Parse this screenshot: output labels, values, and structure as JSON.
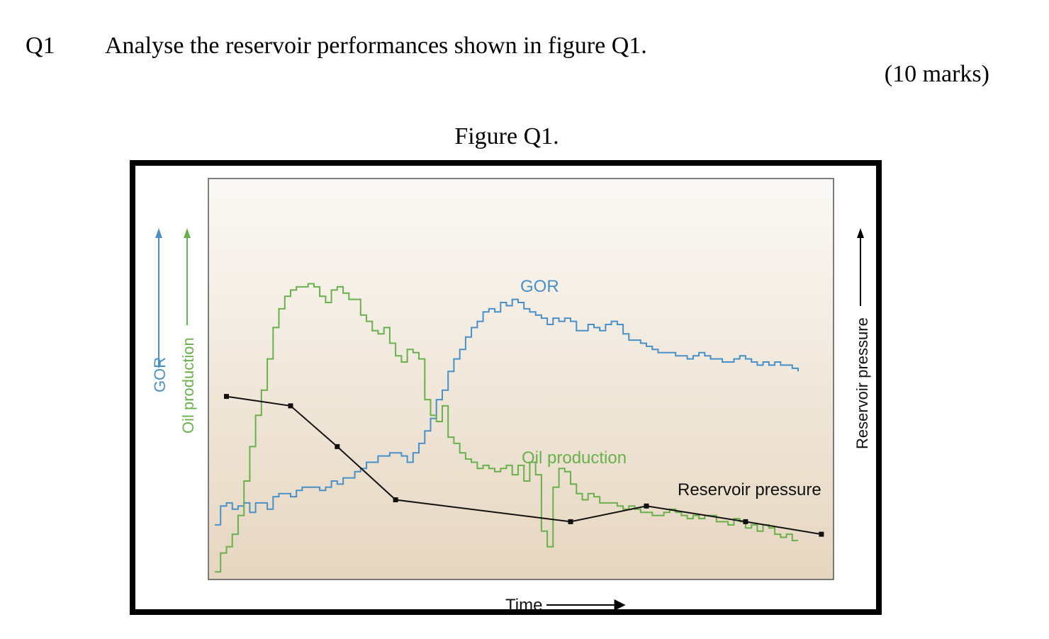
{
  "question": {
    "number": "Q1",
    "text": "Analyse the reservoir performances shown in figure Q1.",
    "marks": "(10 marks)"
  },
  "figure": {
    "title": "Figure Q1."
  },
  "colors": {
    "gor": "#4a90c8",
    "oil": "#6ab04c",
    "pressure": "#111111",
    "plot_top": "#fbf9f6",
    "plot_bottom": "#e6d6c0"
  },
  "chart_data": {
    "type": "line",
    "xlabel": "Time",
    "left_axis_labels": [
      "GOR",
      "Oil production"
    ],
    "right_axis_label": "Reservoir pressure",
    "x_range": [
      0,
      100
    ],
    "y_range": [
      0,
      100
    ],
    "grid": false,
    "series": [
      {
        "name": "GOR",
        "style": "step",
        "color": "#4a90c8",
        "x": [
          0,
          1,
          2,
          3,
          4,
          5,
          6,
          7,
          8,
          9,
          10,
          11,
          12,
          13,
          14,
          15,
          16,
          17,
          18,
          19,
          20,
          21,
          22,
          23,
          24,
          25,
          26,
          27,
          28,
          29,
          30,
          31,
          32,
          33,
          34,
          35,
          36,
          37,
          38,
          39,
          40,
          41,
          42,
          43,
          44,
          45,
          46,
          47,
          48,
          49,
          50,
          51,
          52,
          53,
          54,
          55,
          56,
          57,
          58,
          59,
          60,
          61,
          62,
          63,
          64,
          65,
          66,
          67,
          68,
          69,
          70,
          71,
          72,
          73,
          74,
          75,
          76,
          77,
          78,
          79,
          80,
          81,
          82,
          83,
          84,
          85,
          86,
          87,
          88,
          89,
          90,
          91,
          92,
          93,
          94,
          95,
          96,
          97,
          98,
          99,
          100
        ],
        "y": [
          17,
          23,
          24,
          22,
          23,
          24,
          21,
          24,
          24,
          22,
          26,
          27,
          27,
          26,
          28,
          29,
          29,
          29,
          28,
          29,
          31,
          30,
          32,
          32,
          34,
          35,
          37,
          37,
          39,
          39,
          40,
          40,
          39,
          37,
          40,
          43,
          47,
          51,
          57,
          60,
          66,
          70,
          73,
          77,
          80,
          82,
          85,
          86,
          85,
          88,
          87,
          89,
          88,
          86,
          85,
          84,
          83,
          81,
          83,
          82,
          83,
          82,
          79,
          79,
          81,
          80,
          79,
          81,
          82,
          81,
          78,
          76,
          76,
          75,
          74,
          73,
          72,
          72,
          72,
          71,
          71,
          70,
          71,
          72,
          71,
          70,
          70,
          69,
          69,
          70,
          71,
          70,
          69,
          68,
          69,
          68,
          69,
          68,
          68,
          67,
          66
        ]
      },
      {
        "name": "Oil production",
        "style": "step",
        "color": "#6ab04c",
        "x": [
          0,
          1,
          2,
          3,
          4,
          5,
          6,
          7,
          8,
          9,
          10,
          11,
          12,
          13,
          14,
          15,
          16,
          17,
          18,
          19,
          20,
          21,
          22,
          23,
          24,
          25,
          26,
          27,
          28,
          29,
          30,
          31,
          32,
          33,
          34,
          35,
          36,
          37,
          38,
          39,
          40,
          41,
          42,
          43,
          44,
          45,
          46,
          47,
          48,
          49,
          50,
          51,
          52,
          53,
          54,
          55,
          56,
          57,
          58,
          59,
          60,
          61,
          62,
          63,
          64,
          65,
          66,
          67,
          68,
          69,
          70,
          71,
          72,
          73,
          74,
          75,
          76,
          77,
          78,
          79,
          80,
          81,
          82,
          83,
          84,
          85,
          86,
          87,
          88,
          89,
          90,
          91,
          92,
          93,
          94,
          95,
          96,
          97,
          98,
          99,
          100
        ],
        "y": [
          2,
          8,
          10,
          14,
          20,
          31,
          42,
          52,
          60,
          70,
          80,
          86,
          90,
          92,
          93,
          93,
          94,
          93,
          90,
          88,
          92,
          93,
          91,
          89,
          89,
          84,
          82,
          79,
          78,
          80,
          75,
          71,
          69,
          73,
          72,
          70,
          57,
          52,
          50,
          55,
          45,
          43,
          40,
          38,
          37,
          35,
          36,
          35,
          34,
          35,
          36,
          33,
          36,
          31,
          37,
          33,
          15,
          10,
          29,
          35,
          34,
          30,
          27,
          25,
          27,
          26,
          24,
          24,
          24,
          23,
          22,
          23,
          22,
          21,
          21,
          20,
          20,
          21,
          22,
          21,
          20,
          19,
          20,
          19,
          20,
          20,
          18,
          18,
          17,
          19,
          18,
          16,
          17,
          15,
          17,
          16,
          14,
          13,
          14,
          12,
          12
        ]
      },
      {
        "name": "Reservoir pressure",
        "style": "line-markers",
        "color": "#111111",
        "x": [
          2,
          13,
          21,
          31,
          61,
          74,
          91,
          104
        ],
        "y": [
          58,
          55,
          42,
          25,
          18,
          23,
          18,
          14
        ]
      }
    ]
  }
}
